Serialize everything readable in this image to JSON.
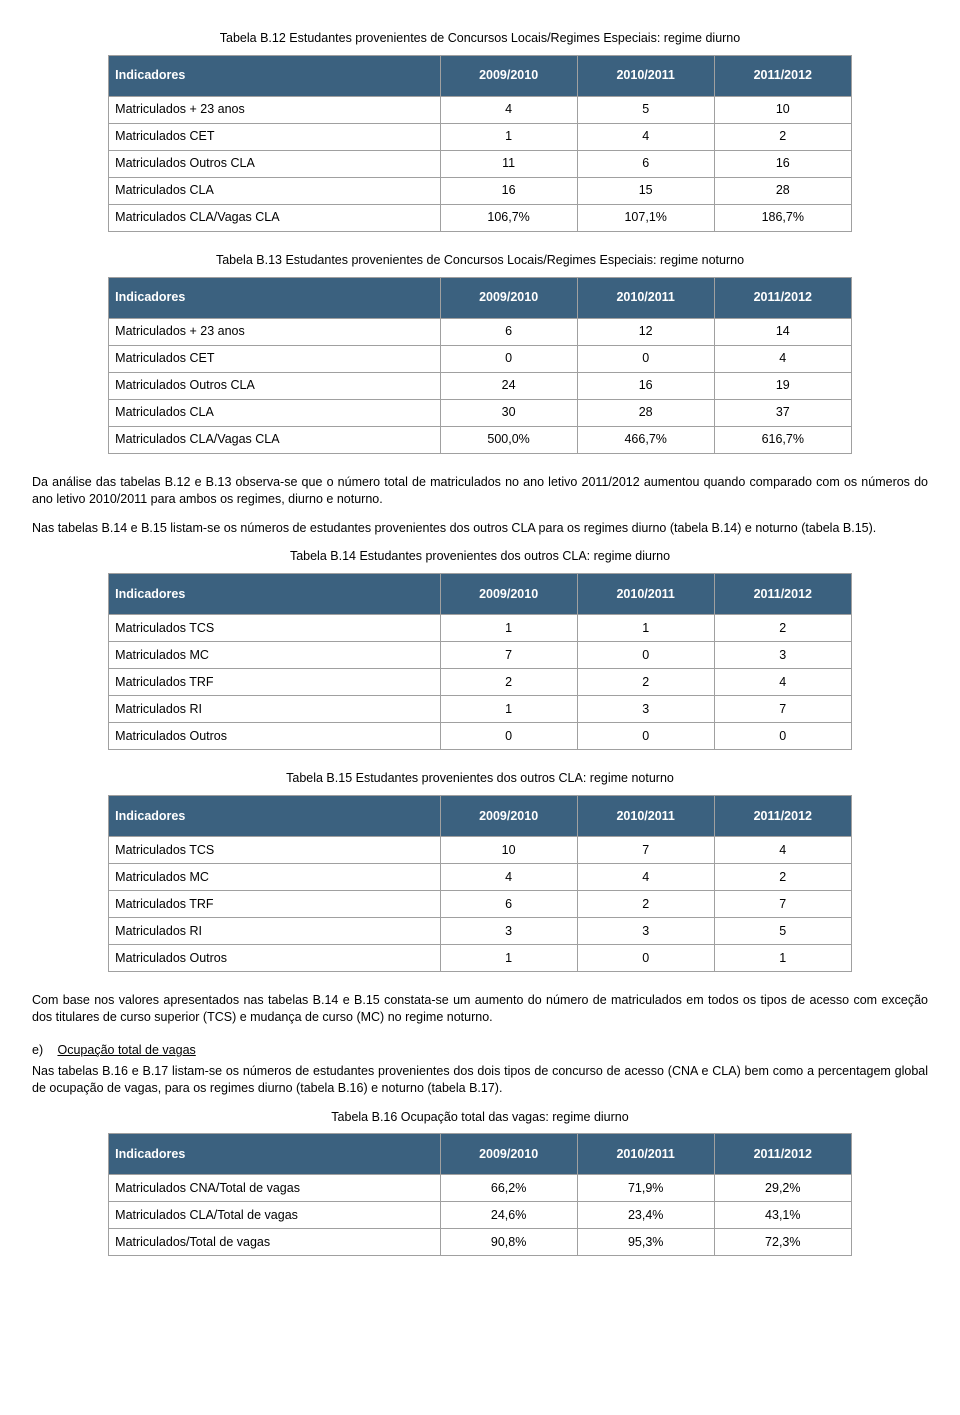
{
  "header_bg": "#3b617f",
  "header_fg": "#ffffff",
  "border_color": "#a0a0a0",
  "col_headers": [
    "Indicadores",
    "2009/2010",
    "2010/2011",
    "2011/2012"
  ],
  "tbl12": {
    "caption": "Tabela B.12 Estudantes provenientes de Concursos Locais/Regimes Especiais: regime diurno",
    "rows": [
      [
        "Matriculados + 23 anos",
        "4",
        "5",
        "10"
      ],
      [
        "Matriculados CET",
        "1",
        "4",
        "2"
      ],
      [
        "Matriculados Outros CLA",
        "11",
        "6",
        "16"
      ],
      [
        "Matriculados CLA",
        "16",
        "15",
        "28"
      ],
      [
        "Matriculados CLA/Vagas CLA",
        "106,7%",
        "107,1%",
        "186,7%"
      ]
    ]
  },
  "tbl13": {
    "caption": "Tabela B.13 Estudantes provenientes de Concursos Locais/Regimes Especiais: regime noturno",
    "rows": [
      [
        "Matriculados + 23 anos",
        "6",
        "12",
        "14"
      ],
      [
        "Matriculados CET",
        "0",
        "0",
        "4"
      ],
      [
        "Matriculados Outros CLA",
        "24",
        "16",
        "19"
      ],
      [
        "Matriculados CLA",
        "30",
        "28",
        "37"
      ],
      [
        "Matriculados CLA/Vagas CLA",
        "500,0%",
        "466,7%",
        "616,7%"
      ]
    ]
  },
  "para1": "Da análise das tabelas B.12 e B.13 observa-se que o número total de matriculados no ano letivo 2011/2012 aumentou quando comparado com os números do ano letivo 2010/2011 para ambos os regimes, diurno e noturno.",
  "para2": "Nas tabelas B.14 e B.15 listam-se os números de estudantes provenientes dos outros CLA para os regimes diurno (tabela B.14) e noturno (tabela B.15).",
  "tbl14": {
    "caption": "Tabela B.14 Estudantes provenientes dos outros CLA: regime diurno",
    "rows": [
      [
        "Matriculados TCS",
        "1",
        "1",
        "2"
      ],
      [
        "Matriculados MC",
        "7",
        "0",
        "3"
      ],
      [
        "Matriculados TRF",
        "2",
        "2",
        "4"
      ],
      [
        "Matriculados RI",
        "1",
        "3",
        "7"
      ],
      [
        "Matriculados Outros",
        "0",
        "0",
        "0"
      ]
    ]
  },
  "tbl15": {
    "caption": "Tabela B.15 Estudantes provenientes dos outros CLA: regime noturno",
    "rows": [
      [
        "Matriculados TCS",
        "10",
        "7",
        "4"
      ],
      [
        "Matriculados MC",
        "4",
        "4",
        "2"
      ],
      [
        "Matriculados TRF",
        "6",
        "2",
        "7"
      ],
      [
        "Matriculados RI",
        "3",
        "3",
        "5"
      ],
      [
        "Matriculados Outros",
        "1",
        "0",
        "1"
      ]
    ]
  },
  "para3": "Com base nos valores apresentados nas tabelas B.14 e B.15 constata-se um aumento do número de matriculados em todos os tipos de acesso com exceção dos titulares de curso superior (TCS) e mudança de curso (MC) no regime noturno.",
  "section_e": {
    "marker": "e)",
    "title": "Ocupação total de vagas"
  },
  "para4": "Nas tabelas B.16 e B.17 listam-se os números de estudantes provenientes dos dois tipos de concurso de acesso (CNA e CLA) bem como a percentagem global de ocupação de vagas, para os regimes diurno (tabela B.16) e noturno (tabela B.17).",
  "tbl16": {
    "caption": "Tabela B.16 Ocupação total das vagas: regime diurno",
    "rows": [
      [
        "Matriculados CNA/Total de vagas",
        "66,2%",
        "71,9%",
        "29,2%"
      ],
      [
        "Matriculados CLA/Total de vagas",
        "24,6%",
        "23,4%",
        "43,1%"
      ],
      [
        "Matriculados/Total de vagas",
        "90,8%",
        "95,3%",
        "72,3%"
      ]
    ]
  }
}
